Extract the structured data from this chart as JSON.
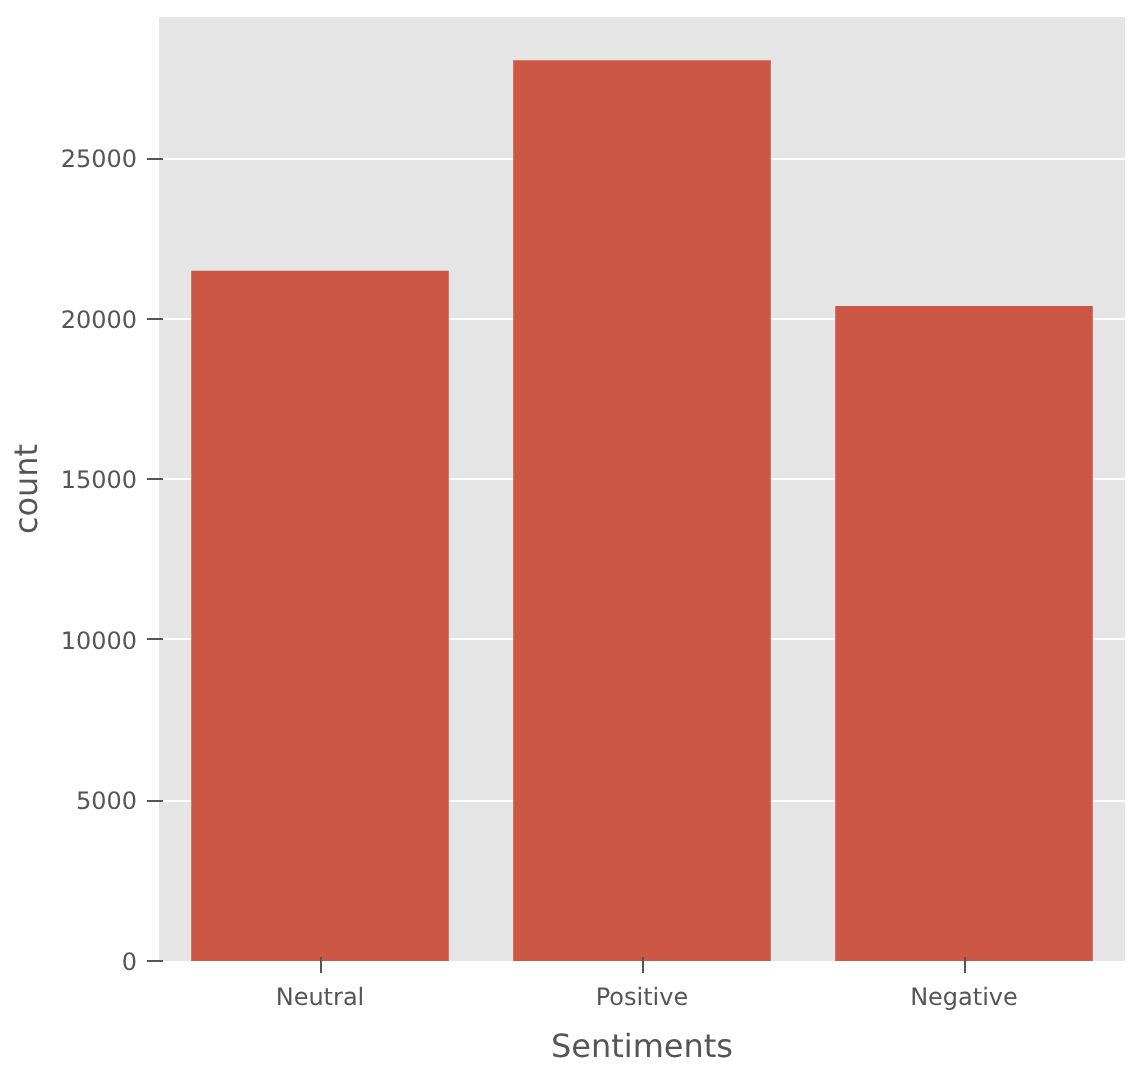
{
  "chart_data": {
    "type": "bar",
    "xlabel": "Sentiments",
    "ylabel": "count",
    "categories": [
      "Neutral",
      "Positive",
      "Negative"
    ],
    "values": [
      21500,
      28050,
      20400
    ],
    "color": "#cc5745",
    "ylim": [
      0,
      29400
    ],
    "yticks": [
      0,
      5000,
      10000,
      15000,
      20000,
      25000
    ],
    "grid": "y"
  }
}
